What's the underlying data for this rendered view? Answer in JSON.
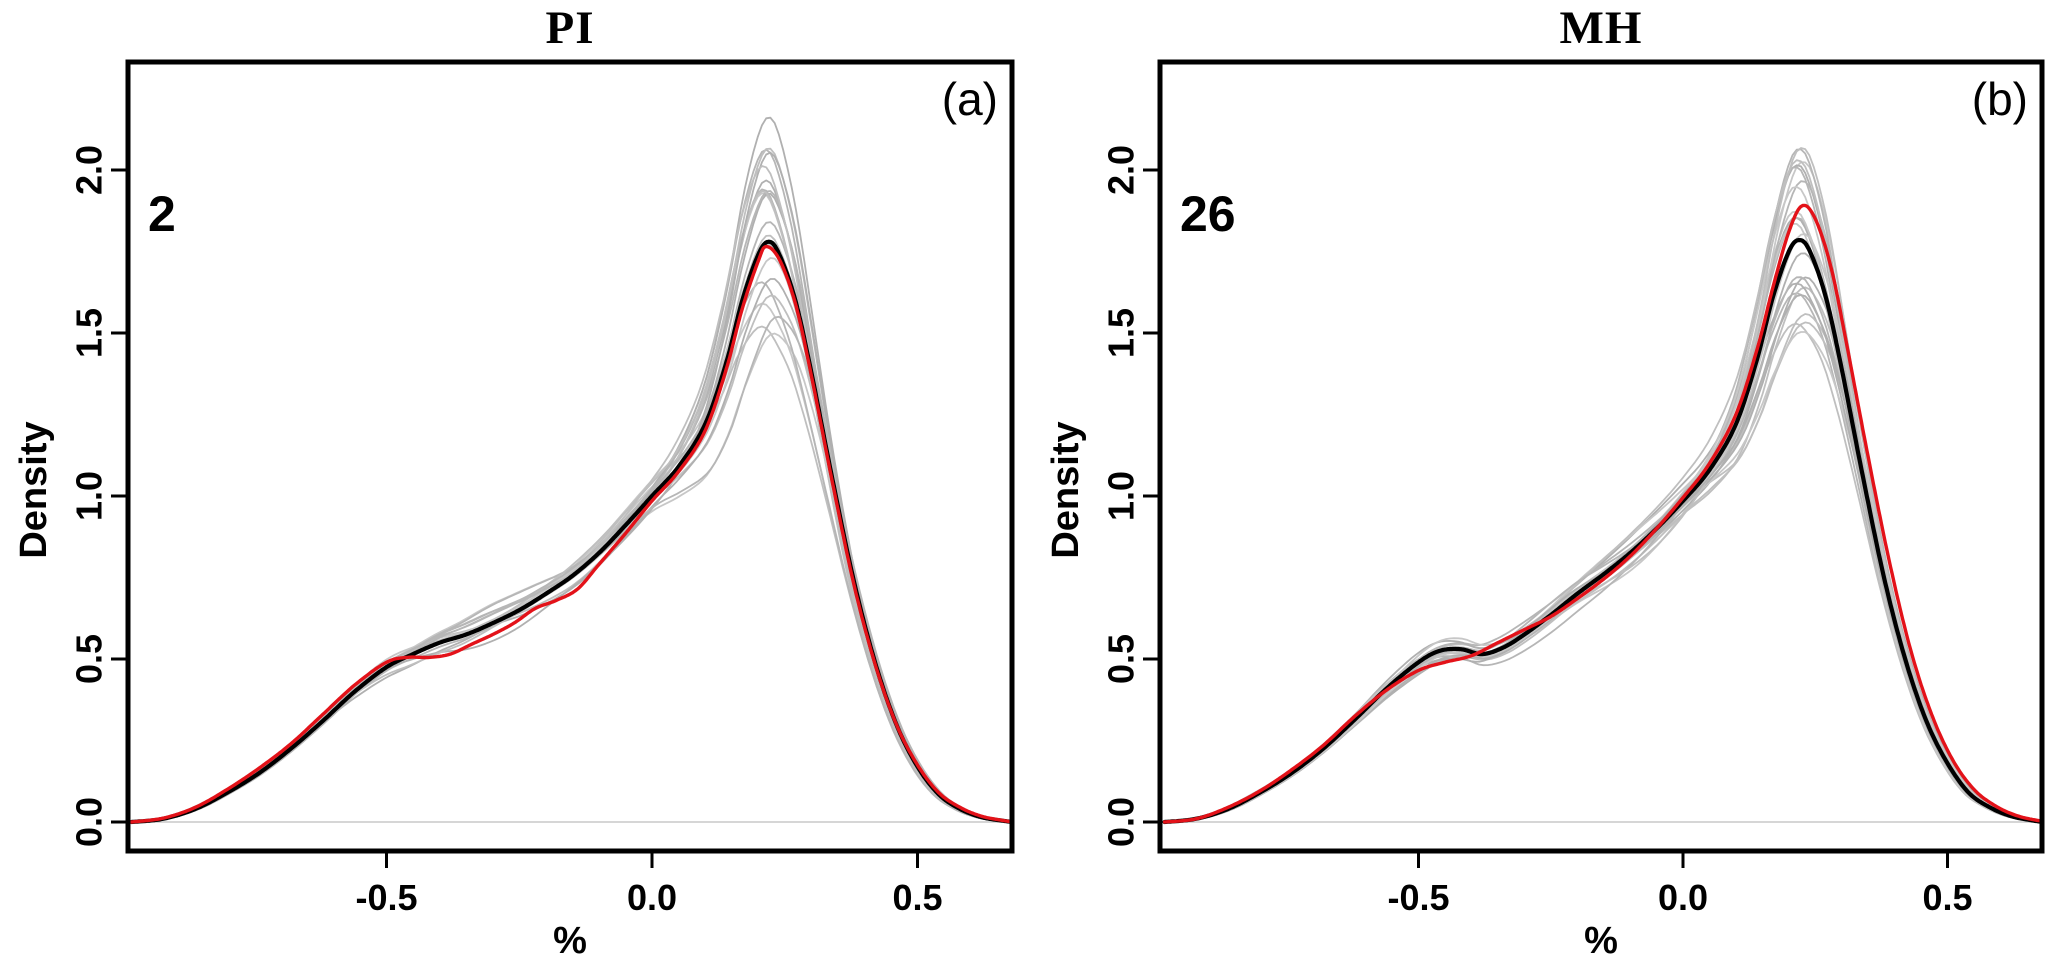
{
  "colors": {
    "reference_curve": "#000000",
    "highlight_curve": "#e31219",
    "ensemble_curve": "#bdbdbd",
    "axis": "#000000",
    "zero_line": "#c9c9c9",
    "background": "#ffffff"
  },
  "chart_data": [
    {
      "type": "line",
      "title": "PI",
      "panel_label": "(a)",
      "count_annotation": "2",
      "xlabel": "%",
      "ylabel": "Density",
      "xlim": [
        -0.987,
        0.68
      ],
      "ylim": [
        0,
        2.33
      ],
      "xticks": [
        -0.5,
        0.0,
        0.5
      ],
      "xtick_labels": [
        "-0.5",
        "0.0",
        "0.5"
      ],
      "yticks": [
        0.0,
        0.5,
        1.0,
        1.5,
        2.0
      ],
      "ytick_labels": [
        "0.0",
        "0.5",
        "1.0",
        "1.5",
        "2.0"
      ],
      "grid": false,
      "legend": "none",
      "series": [
        {
          "name": "reference-density-black",
          "color": "#000000",
          "width": 4.2,
          "x": [
            -0.98,
            -0.92,
            -0.86,
            -0.8,
            -0.74,
            -0.68,
            -0.62,
            -0.56,
            -0.5,
            -0.45,
            -0.4,
            -0.35,
            -0.3,
            -0.25,
            -0.2,
            -0.15,
            -0.1,
            -0.05,
            0.0,
            0.05,
            0.1,
            0.14,
            0.17,
            0.2,
            0.22,
            0.24,
            0.27,
            0.3,
            0.34,
            0.38,
            0.42,
            0.46,
            0.5,
            0.54,
            0.58,
            0.62,
            0.66,
            0.68
          ],
          "y": [
            0,
            0.01,
            0.04,
            0.09,
            0.15,
            0.225,
            0.31,
            0.4,
            0.475,
            0.515,
            0.55,
            0.575,
            0.61,
            0.65,
            0.7,
            0.755,
            0.825,
            0.91,
            1.0,
            1.09,
            1.22,
            1.41,
            1.6,
            1.74,
            1.78,
            1.74,
            1.6,
            1.38,
            1.05,
            0.74,
            0.49,
            0.3,
            0.17,
            0.085,
            0.04,
            0.015,
            0.004,
            0
          ]
        },
        {
          "name": "highlight-density-red",
          "color": "#e31219",
          "width": 3.4,
          "x": [
            -0.98,
            -0.92,
            -0.86,
            -0.8,
            -0.74,
            -0.68,
            -0.62,
            -0.56,
            -0.5,
            -0.46,
            -0.42,
            -0.38,
            -0.34,
            -0.3,
            -0.26,
            -0.22,
            -0.18,
            -0.14,
            -0.1,
            -0.05,
            0.0,
            0.05,
            0.1,
            0.14,
            0.17,
            0.2,
            0.215,
            0.24,
            0.27,
            0.3,
            0.34,
            0.38,
            0.42,
            0.46,
            0.5,
            0.54,
            0.58,
            0.62,
            0.66,
            0.68
          ],
          "y": [
            0,
            0.012,
            0.045,
            0.1,
            0.165,
            0.24,
            0.33,
            0.42,
            0.49,
            0.505,
            0.505,
            0.515,
            0.545,
            0.575,
            0.61,
            0.655,
            0.68,
            0.715,
            0.79,
            0.885,
            0.985,
            1.075,
            1.2,
            1.39,
            1.575,
            1.72,
            1.765,
            1.725,
            1.59,
            1.37,
            1.04,
            0.73,
            0.485,
            0.3,
            0.175,
            0.09,
            0.045,
            0.018,
            0.005,
            0
          ]
        }
      ],
      "ensemble": {
        "description": "thin grey background density curves (bootstrap members)",
        "count": 22,
        "seed": 11,
        "peak_scale_range": [
          0.84,
          1.22
        ],
        "peak_density_range": [
          1.48,
          2.16
        ],
        "color": "#bdbdbd",
        "width": 1.8
      }
    },
    {
      "type": "line",
      "title": "MH",
      "panel_label": "(b)",
      "count_annotation": "26",
      "xlabel": "%",
      "ylabel": "Density",
      "xlim": [
        -0.987,
        0.68
      ],
      "ylim": [
        0,
        2.33
      ],
      "xticks": [
        -0.5,
        0.0,
        0.5
      ],
      "xtick_labels": [
        "-0.5",
        "0.0",
        "0.5"
      ],
      "yticks": [
        0.0,
        0.5,
        1.0,
        1.5,
        2.0
      ],
      "ytick_labels": [
        "0.0",
        "0.5",
        "1.0",
        "1.5",
        "2.0"
      ],
      "grid": false,
      "legend": "none",
      "series": [
        {
          "name": "reference-density-black",
          "color": "#000000",
          "width": 4.2,
          "x": [
            -0.98,
            -0.92,
            -0.86,
            -0.8,
            -0.74,
            -0.68,
            -0.62,
            -0.56,
            -0.5,
            -0.46,
            -0.42,
            -0.38,
            -0.34,
            -0.3,
            -0.25,
            -0.2,
            -0.15,
            -0.1,
            -0.05,
            0.0,
            0.05,
            0.1,
            0.14,
            0.17,
            0.2,
            0.22,
            0.24,
            0.27,
            0.3,
            0.34,
            0.38,
            0.42,
            0.46,
            0.5,
            0.54,
            0.58,
            0.62,
            0.66,
            0.68
          ],
          "y": [
            0,
            0.01,
            0.04,
            0.09,
            0.15,
            0.225,
            0.315,
            0.41,
            0.49,
            0.525,
            0.53,
            0.515,
            0.535,
            0.575,
            0.635,
            0.7,
            0.76,
            0.825,
            0.9,
            0.985,
            1.08,
            1.22,
            1.42,
            1.61,
            1.75,
            1.785,
            1.75,
            1.61,
            1.39,
            1.06,
            0.75,
            0.5,
            0.31,
            0.18,
            0.09,
            0.045,
            0.018,
            0.005,
            0
          ]
        },
        {
          "name": "highlight-density-red",
          "color": "#e31219",
          "width": 3.4,
          "x": [
            -0.98,
            -0.92,
            -0.86,
            -0.8,
            -0.74,
            -0.68,
            -0.62,
            -0.56,
            -0.5,
            -0.45,
            -0.4,
            -0.35,
            -0.3,
            -0.25,
            -0.2,
            -0.15,
            -0.1,
            -0.05,
            0.0,
            0.05,
            0.1,
            0.14,
            0.17,
            0.2,
            0.225,
            0.25,
            0.28,
            0.31,
            0.35,
            0.39,
            0.43,
            0.47,
            0.51,
            0.55,
            0.59,
            0.63,
            0.67,
            0.7
          ],
          "y": [
            0,
            0.01,
            0.045,
            0.095,
            0.16,
            0.235,
            0.325,
            0.405,
            0.465,
            0.49,
            0.51,
            0.55,
            0.59,
            0.63,
            0.685,
            0.745,
            0.815,
            0.9,
            0.995,
            1.1,
            1.25,
            1.45,
            1.64,
            1.81,
            1.89,
            1.85,
            1.7,
            1.46,
            1.12,
            0.8,
            0.53,
            0.33,
            0.19,
            0.1,
            0.05,
            0.02,
            0.005,
            0
          ]
        }
      ],
      "ensemble": {
        "description": "thin grey background density curves (bootstrap members)",
        "count": 24,
        "seed": 29,
        "peak_scale_range": [
          0.84,
          1.16
        ],
        "peak_density_range": [
          1.45,
          2.06
        ],
        "color": "#bdbdbd",
        "width": 1.8
      }
    }
  ]
}
